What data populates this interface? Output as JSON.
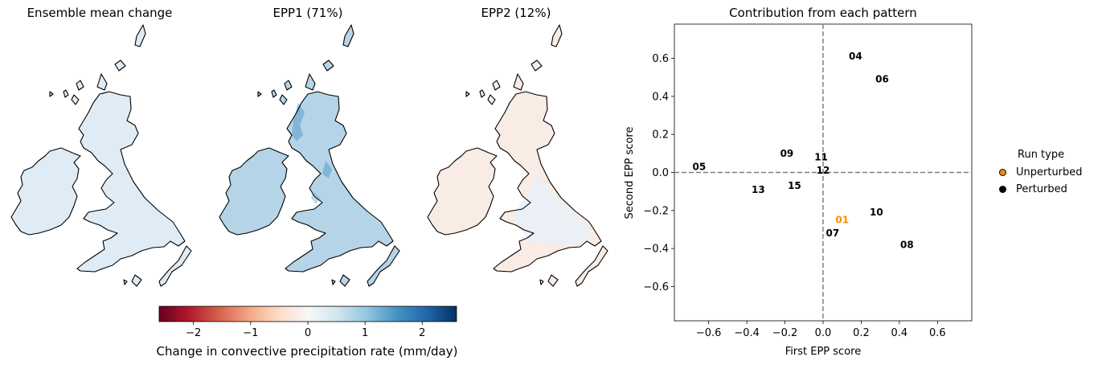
{
  "maps": [
    {
      "title": "Ensemble mean change",
      "tint_color": "#c4dcec",
      "tint_strength": 0.55
    },
    {
      "title": "EPP1 (71%)",
      "tint_color": "#a9cde3",
      "tint_strength": 0.85
    },
    {
      "title": "EPP2 (12%)",
      "tint_color": "#f2ddd0",
      "tint_strength": 0.55
    }
  ],
  "colorbar": {
    "label": "Change in convective precipitation rate (mm/day)",
    "ticks": [
      "−2",
      "−1",
      "0",
      "1",
      "2"
    ],
    "tick_values": [
      -2,
      -1,
      0,
      1,
      2
    ],
    "range": [
      -2.6,
      2.6
    ],
    "colors": [
      "#67001f",
      "#b2182b",
      "#d6604d",
      "#f4a582",
      "#fddbc7",
      "#f7f7f7",
      "#d1e5f0",
      "#92c5de",
      "#4393c3",
      "#2166ac",
      "#053061"
    ]
  },
  "chart_data": {
    "type": "scatter",
    "title": "Contribution from each pattern",
    "xlabel": "First EPP score",
    "ylabel": "Second EPP score",
    "xlim": [
      -0.78,
      0.78
    ],
    "ylim": [
      -0.78,
      0.78
    ],
    "xticks": [
      -0.6,
      -0.4,
      -0.2,
      0.0,
      0.2,
      0.4,
      0.6
    ],
    "xtick_labels": [
      "−0.6",
      "−0.4",
      "−0.2",
      "0.0",
      "0.2",
      "0.4",
      "0.6"
    ],
    "yticks": [
      -0.6,
      -0.4,
      -0.2,
      0.0,
      0.2,
      0.4,
      0.6
    ],
    "ytick_labels": [
      "−0.6",
      "−0.4",
      "−0.2",
      "0.0",
      "0.2",
      "0.4",
      "0.6"
    ],
    "reference_lines": {
      "x": 0,
      "y": 0,
      "style": "dashed",
      "color": "#808080"
    },
    "points": [
      {
        "label": "01",
        "x": 0.1,
        "y": -0.25,
        "type": "Unperturbed"
      },
      {
        "label": "04",
        "x": 0.17,
        "y": 0.61,
        "type": "Perturbed"
      },
      {
        "label": "05",
        "x": -0.65,
        "y": 0.03,
        "type": "Perturbed"
      },
      {
        "label": "06",
        "x": 0.31,
        "y": 0.49,
        "type": "Perturbed"
      },
      {
        "label": "07",
        "x": 0.05,
        "y": -0.32,
        "type": "Perturbed"
      },
      {
        "label": "08",
        "x": 0.44,
        "y": -0.38,
        "type": "Perturbed"
      },
      {
        "label": "09",
        "x": -0.19,
        "y": 0.1,
        "type": "Perturbed"
      },
      {
        "label": "10",
        "x": 0.28,
        "y": -0.21,
        "type": "Perturbed"
      },
      {
        "label": "11",
        "x": -0.01,
        "y": 0.08,
        "type": "Perturbed"
      },
      {
        "label": "12",
        "x": 0.0,
        "y": 0.01,
        "type": "Perturbed"
      },
      {
        "label": "13",
        "x": -0.34,
        "y": -0.09,
        "type": "Perturbed"
      },
      {
        "label": "15",
        "x": -0.15,
        "y": -0.07,
        "type": "Perturbed"
      }
    ],
    "legend": {
      "title": "Run type",
      "position": "right",
      "entries": [
        {
          "label": "Unperturbed",
          "color": "#ff8c00"
        },
        {
          "label": "Perturbed",
          "color": "#000000"
        }
      ]
    }
  }
}
